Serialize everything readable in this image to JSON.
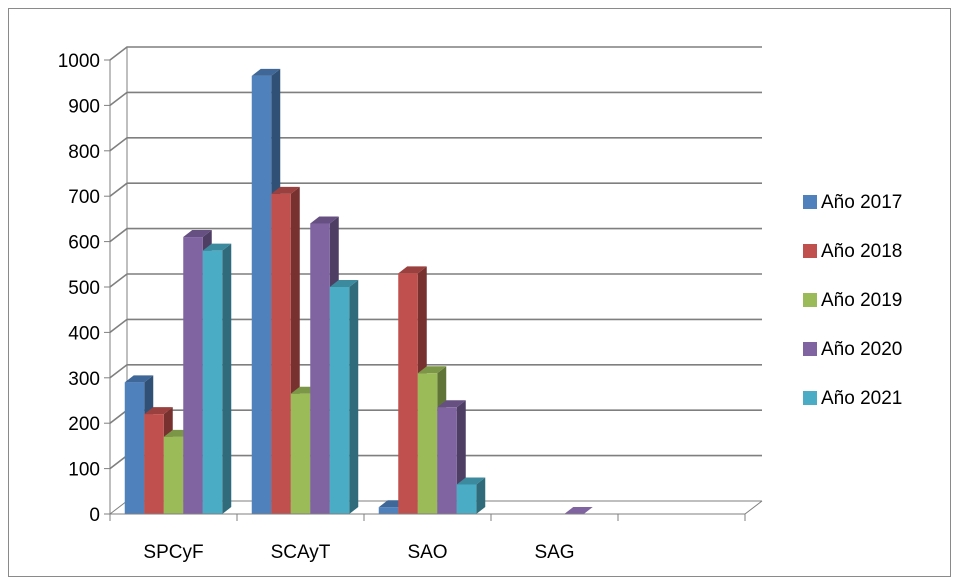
{
  "chart_data": {
    "type": "bar",
    "style": "3d-clustered-column",
    "categories": [
      "SPCyF",
      "SCAyT",
      "SAO",
      "SAG",
      ""
    ],
    "series": [
      {
        "name": "Año 2017",
        "color": "#4F81BD",
        "values": [
          290,
          965,
          15,
          0,
          0
        ]
      },
      {
        "name": "Año 2018",
        "color": "#C0504D",
        "values": [
          220,
          705,
          530,
          0,
          0
        ]
      },
      {
        "name": "Año 2019",
        "color": "#9BBB59",
        "values": [
          170,
          265,
          310,
          0,
          0
        ]
      },
      {
        "name": "Año 2020",
        "color": "#8064A2",
        "values": [
          610,
          640,
          235,
          0,
          0
        ]
      },
      {
        "name": "Año 2021",
        "color": "#4BACC6",
        "values": [
          580,
          500,
          65,
          0,
          0
        ]
      }
    ],
    "ylim": [
      0,
      1000
    ],
    "yticks": [
      "0",
      "100",
      "200",
      "300",
      "400",
      "500",
      "600",
      "700",
      "800",
      "900",
      "1000"
    ],
    "grid": true,
    "legend_position": "right"
  }
}
